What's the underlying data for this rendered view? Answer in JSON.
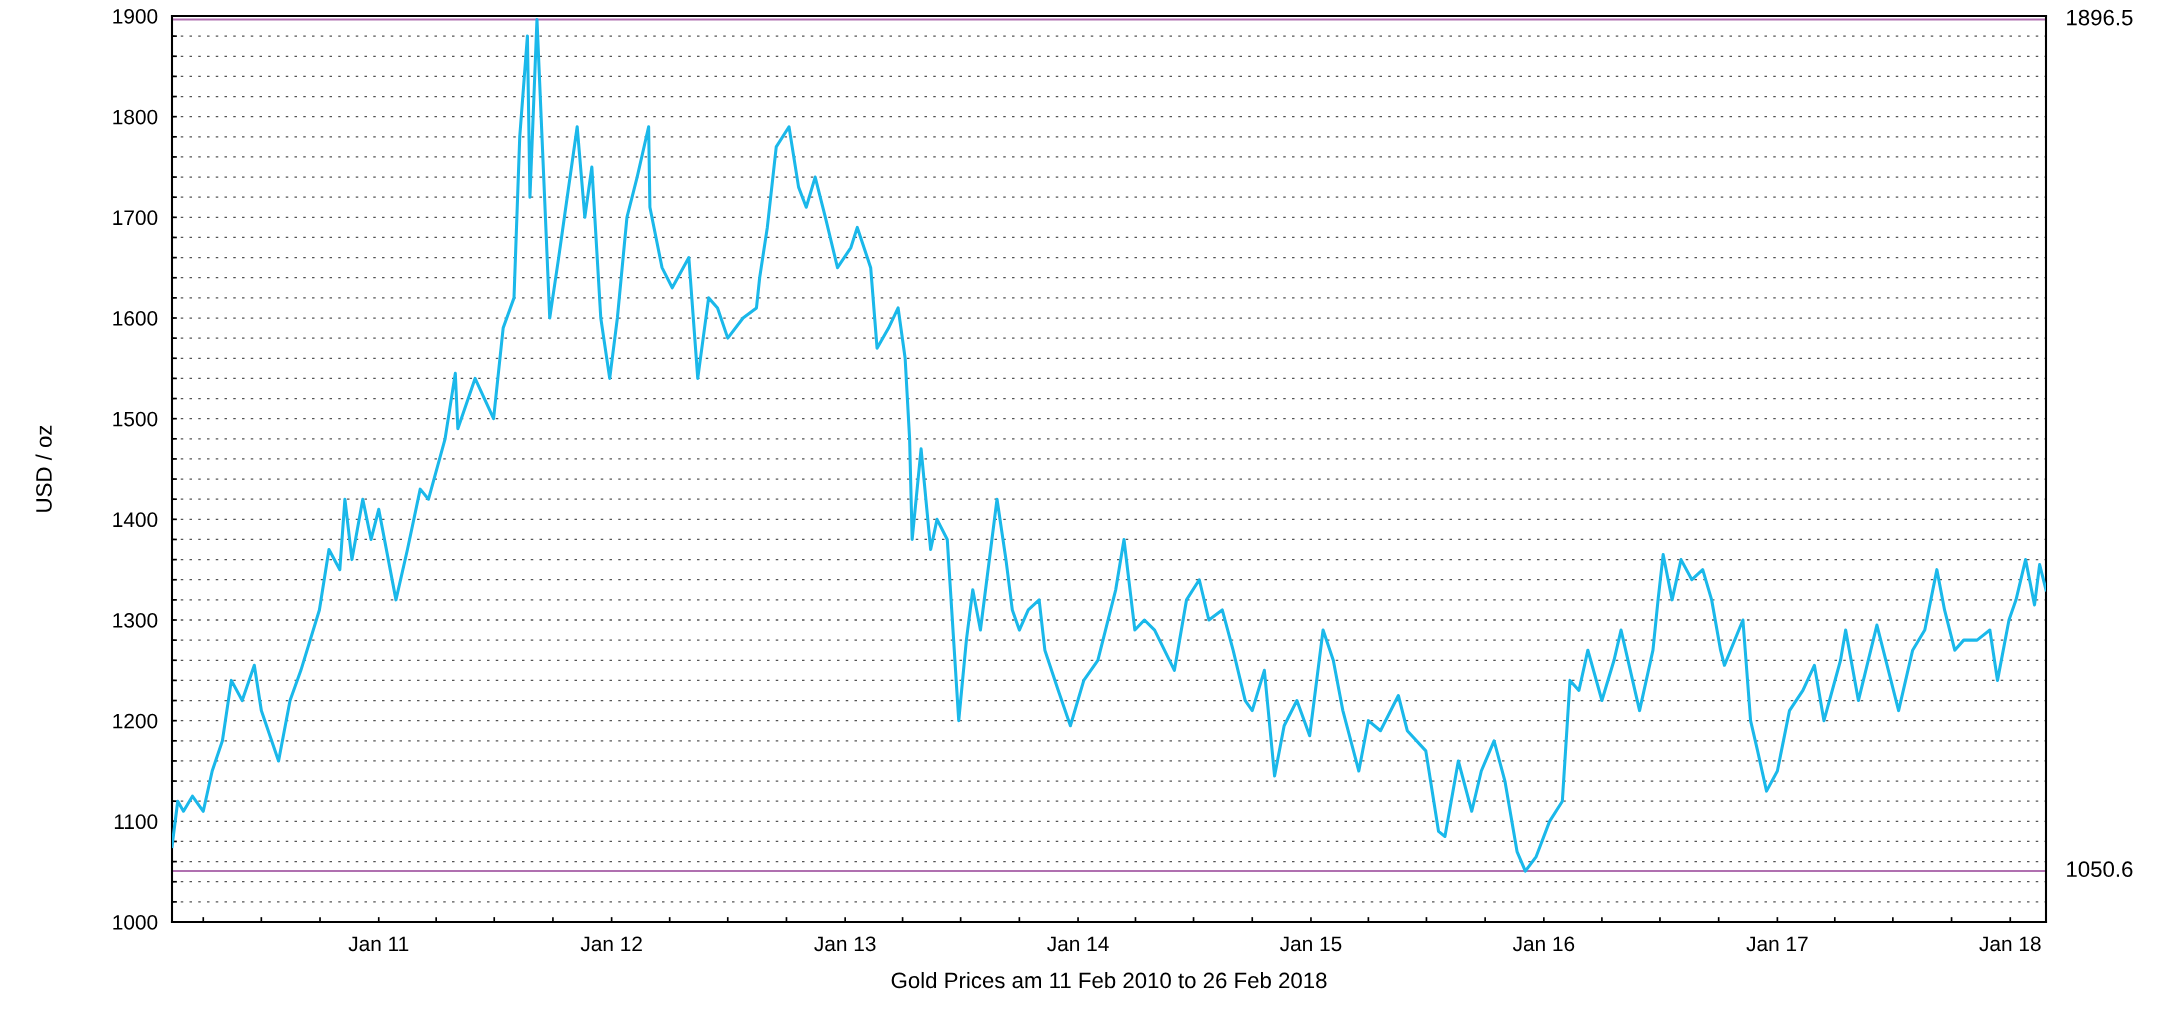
{
  "chart_data": {
    "type": "line",
    "xlabel": "Gold Prices am 11 Feb 2010 to 26 Feb 2018",
    "ylabel": "USD / oz",
    "xlim": [
      "2010-02-11",
      "2018-02-26"
    ],
    "ylim": [
      1000,
      1900
    ],
    "xticks": [
      {
        "value": "2010-04-01",
        "label": null
      },
      {
        "value": "2010-07-01",
        "label": null
      },
      {
        "value": "2010-10-01",
        "label": null
      },
      {
        "value": "2011-01-01",
        "label": "Jan 11"
      },
      {
        "value": "2011-04-01",
        "label": null
      },
      {
        "value": "2011-07-01",
        "label": null
      },
      {
        "value": "2011-10-01",
        "label": null
      },
      {
        "value": "2012-01-01",
        "label": "Jan 12"
      },
      {
        "value": "2012-04-01",
        "label": null
      },
      {
        "value": "2012-07-01",
        "label": null
      },
      {
        "value": "2012-10-01",
        "label": null
      },
      {
        "value": "2013-01-01",
        "label": "Jan 13"
      },
      {
        "value": "2013-04-01",
        "label": null
      },
      {
        "value": "2013-07-01",
        "label": null
      },
      {
        "value": "2013-10-01",
        "label": null
      },
      {
        "value": "2014-01-01",
        "label": "Jan 14"
      },
      {
        "value": "2014-04-01",
        "label": null
      },
      {
        "value": "2014-07-01",
        "label": null
      },
      {
        "value": "2014-10-01",
        "label": null
      },
      {
        "value": "2015-01-01",
        "label": "Jan 15"
      },
      {
        "value": "2015-04-01",
        "label": null
      },
      {
        "value": "2015-07-01",
        "label": null
      },
      {
        "value": "2015-10-01",
        "label": null
      },
      {
        "value": "2016-01-01",
        "label": "Jan 16"
      },
      {
        "value": "2016-04-01",
        "label": null
      },
      {
        "value": "2016-07-01",
        "label": null
      },
      {
        "value": "2016-10-01",
        "label": null
      },
      {
        "value": "2017-01-01",
        "label": "Jan 17"
      },
      {
        "value": "2017-04-01",
        "label": null
      },
      {
        "value": "2017-07-01",
        "label": null
      },
      {
        "value": "2017-10-01",
        "label": null
      },
      {
        "value": "2018-01-01",
        "label": "Jan 18"
      }
    ],
    "yticks": [
      1000,
      {
        "value": 1020,
        "label": null
      },
      {
        "value": 1040,
        "label": null
      },
      {
        "value": 1060,
        "label": null
      },
      {
        "value": 1080,
        "label": null
      },
      1100,
      {
        "value": 1120,
        "label": null
      },
      {
        "value": 1140,
        "label": null
      },
      {
        "value": 1160,
        "label": null
      },
      {
        "value": 1180,
        "label": null
      },
      1200,
      {
        "value": 1220,
        "label": null
      },
      {
        "value": 1240,
        "label": null
      },
      {
        "value": 1260,
        "label": null
      },
      {
        "value": 1280,
        "label": null
      },
      1300,
      {
        "value": 1320,
        "label": null
      },
      {
        "value": 1340,
        "label": null
      },
      {
        "value": 1360,
        "label": null
      },
      {
        "value": 1380,
        "label": null
      },
      1400,
      {
        "value": 1420,
        "label": null
      },
      {
        "value": 1440,
        "label": null
      },
      {
        "value": 1460,
        "label": null
      },
      {
        "value": 1480,
        "label": null
      },
      1500,
      {
        "value": 1520,
        "label": null
      },
      {
        "value": 1540,
        "label": null
      },
      {
        "value": 1560,
        "label": null
      },
      {
        "value": 1580,
        "label": null
      },
      1600,
      {
        "value": 1620,
        "label": null
      },
      {
        "value": 1640,
        "label": null
      },
      {
        "value": 1660,
        "label": null
      },
      {
        "value": 1680,
        "label": null
      },
      1700,
      {
        "value": 1720,
        "label": null
      },
      {
        "value": 1740,
        "label": null
      },
      {
        "value": 1760,
        "label": null
      },
      {
        "value": 1780,
        "label": null
      },
      1800,
      {
        "value": 1820,
        "label": null
      },
      {
        "value": 1840,
        "label": null
      },
      {
        "value": 1860,
        "label": null
      },
      {
        "value": 1880,
        "label": null
      },
      1900
    ],
    "grid": "y",
    "line_style": "solid",
    "marker": "none",
    "ref_lines": [
      {
        "axis": "y",
        "value": 1896.5,
        "label": "1896.5",
        "color": "#b070b0"
      },
      {
        "axis": "y",
        "value": 1050.6,
        "label": "1050.6",
        "color": "#b070b0"
      }
    ],
    "series": [
      {
        "color": "#1ab8ea",
        "x": [
          "2010-02-11",
          "2010-02-20",
          "2010-03-01",
          "2010-03-15",
          "2010-04-01",
          "2010-04-15",
          "2010-05-01",
          "2010-05-15",
          "2010-06-01",
          "2010-06-20",
          "2010-07-01",
          "2010-07-28",
          "2010-08-15",
          "2010-09-01",
          "2010-09-30",
          "2010-10-15",
          "2010-11-01",
          "2010-11-09",
          "2010-11-20",
          "2010-12-07",
          "2010-12-20",
          "2011-01-01",
          "2011-01-28",
          "2011-02-15",
          "2011-03-07",
          "2011-03-20",
          "2011-04-15",
          "2011-05-01",
          "2011-05-05",
          "2011-06-01",
          "2011-06-30",
          "2011-07-15",
          "2011-08-01",
          "2011-08-10",
          "2011-08-22",
          "2011-08-26",
          "2011-09-06",
          "2011-09-26",
          "2011-10-10",
          "2011-11-08",
          "2011-11-20",
          "2011-12-01",
          "2011-12-15",
          "2011-12-29",
          "2012-01-10",
          "2012-01-25",
          "2012-02-10",
          "2012-02-28",
          "2012-03-01",
          "2012-03-20",
          "2012-04-05",
          "2012-05-01",
          "2012-05-15",
          "2012-06-01",
          "2012-06-15",
          "2012-07-01",
          "2012-07-25",
          "2012-08-15",
          "2012-08-20",
          "2012-09-01",
          "2012-09-15",
          "2012-10-05",
          "2012-10-20",
          "2012-11-01",
          "2012-11-15",
          "2012-12-01",
          "2012-12-20",
          "2013-01-10",
          "2013-01-20",
          "2013-02-10",
          "2013-02-20",
          "2013-03-10",
          "2013-03-25",
          "2013-04-05",
          "2013-04-12",
          "2013-04-16",
          "2013-04-30",
          "2013-05-15",
          "2013-05-25",
          "2013-06-10",
          "2013-06-20",
          "2013-06-28",
          "2013-07-10",
          "2013-07-20",
          "2013-08-01",
          "2013-08-27",
          "2013-09-10",
          "2013-09-20",
          "2013-10-01",
          "2013-10-15",
          "2013-11-01",
          "2013-11-10",
          "2013-12-01",
          "2013-12-20",
          "2014-01-10",
          "2014-02-01",
          "2014-03-01",
          "2014-03-14",
          "2014-03-31",
          "2014-04-15",
          "2014-05-01",
          "2014-06-01",
          "2014-06-20",
          "2014-07-10",
          "2014-07-25",
          "2014-08-15",
          "2014-09-01",
          "2014-09-20",
          "2014-10-01",
          "2014-10-20",
          "2014-11-05",
          "2014-11-20",
          "2014-12-10",
          "2014-12-30",
          "2015-01-20",
          "2015-02-05",
          "2015-02-20",
          "2015-03-17",
          "2015-04-01",
          "2015-04-20",
          "2015-05-18",
          "2015-06-01",
          "2015-06-30",
          "2015-07-20",
          "2015-07-30",
          "2015-08-20",
          "2015-09-10",
          "2015-09-25",
          "2015-10-15",
          "2015-11-01",
          "2015-11-20",
          "2015-12-03",
          "2015-12-20",
          "2016-01-10",
          "2016-01-30",
          "2016-02-11",
          "2016-02-25",
          "2016-03-10",
          "2016-04-01",
          "2016-04-20",
          "2016-05-01",
          "2016-05-30",
          "2016-06-20",
          "2016-06-28",
          "2016-07-06",
          "2016-07-20",
          "2016-08-03",
          "2016-08-20",
          "2016-09-06",
          "2016-09-20",
          "2016-10-04",
          "2016-10-10",
          "2016-11-08",
          "2016-11-20",
          "2016-12-01",
          "2016-12-15",
          "2017-01-01",
          "2017-01-20",
          "2017-02-10",
          "2017-02-28",
          "2017-03-15",
          "2017-04-10",
          "2017-04-18",
          "2017-05-08",
          "2017-06-06",
          "2017-07-10",
          "2017-08-01",
          "2017-08-20",
          "2017-09-08",
          "2017-09-20",
          "2017-10-06",
          "2017-10-20",
          "2017-11-10",
          "2017-11-30",
          "2017-12-12",
          "2017-12-30",
          "2018-01-10",
          "2018-01-25",
          "2018-02-08",
          "2018-02-16",
          "2018-02-26"
        ],
        "values": [
          1075,
          1120,
          1110,
          1125,
          1110,
          1150,
          1180,
          1240,
          1220,
          1255,
          1210,
          1160,
          1220,
          1250,
          1310,
          1370,
          1350,
          1420,
          1360,
          1420,
          1380,
          1410,
          1320,
          1370,
          1430,
          1420,
          1480,
          1545,
          1490,
          1540,
          1500,
          1590,
          1620,
          1780,
          1880,
          1720,
          1896.5,
          1600,
          1660,
          1790,
          1700,
          1750,
          1600,
          1540,
          1600,
          1700,
          1740,
          1790,
          1710,
          1650,
          1630,
          1660,
          1540,
          1620,
          1610,
          1580,
          1600,
          1610,
          1640,
          1690,
          1770,
          1790,
          1730,
          1710,
          1740,
          1700,
          1650,
          1670,
          1690,
          1650,
          1570,
          1590,
          1610,
          1560,
          1480,
          1380,
          1470,
          1370,
          1400,
          1380,
          1280,
          1200,
          1280,
          1330,
          1290,
          1420,
          1360,
          1310,
          1290,
          1310,
          1320,
          1270,
          1230,
          1195,
          1240,
          1260,
          1330,
          1380,
          1290,
          1300,
          1290,
          1250,
          1320,
          1340,
          1300,
          1310,
          1270,
          1220,
          1210,
          1250,
          1145,
          1195,
          1220,
          1185,
          1290,
          1260,
          1210,
          1150,
          1200,
          1190,
          1225,
          1190,
          1170,
          1090,
          1085,
          1160,
          1110,
          1150,
          1180,
          1140,
          1070,
          1050.6,
          1065,
          1100,
          1120,
          1240,
          1230,
          1270,
          1220,
          1260,
          1290,
          1210,
          1270,
          1320,
          1365,
          1320,
          1360,
          1340,
          1350,
          1320,
          1270,
          1255,
          1300,
          1200,
          1170,
          1130,
          1150,
          1210,
          1230,
          1255,
          1200,
          1260,
          1290,
          1220,
          1295,
          1210,
          1270,
          1290,
          1350,
          1310,
          1270,
          1280,
          1280,
          1290,
          1240,
          1300,
          1320,
          1360,
          1315,
          1355,
          1330
        ]
      }
    ]
  }
}
